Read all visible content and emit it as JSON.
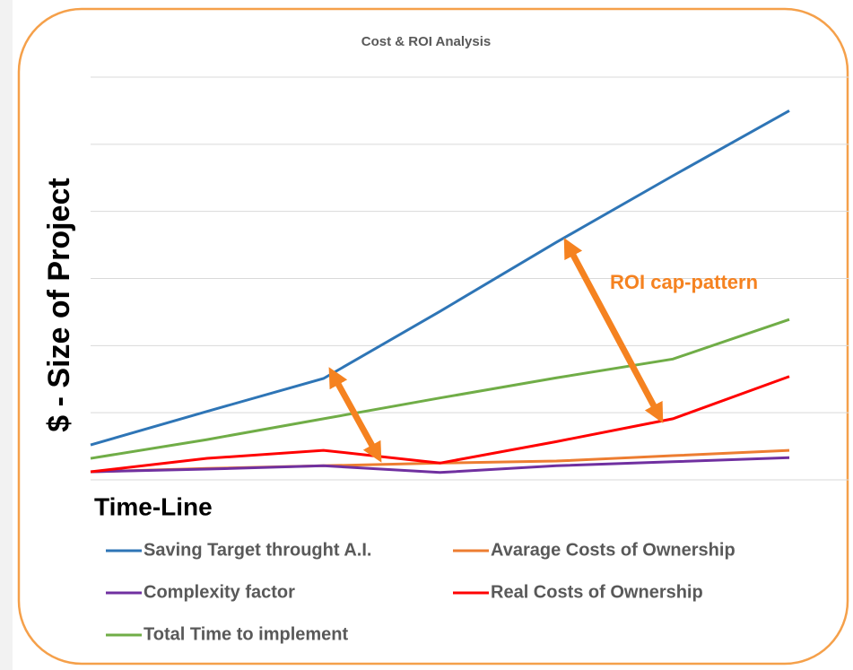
{
  "chart_data": {
    "type": "line",
    "title": "Cost & ROI Analysis",
    "x_label": "Time-Line",
    "y_label": "$ - Size of Project",
    "annotations": [
      "ROI cap-pattern"
    ],
    "categories": [
      null,
      null,
      null,
      null,
      null,
      null,
      null
    ],
    "series": [
      {
        "name": "Saving Target throught A.I.",
        "color": "#2e75b6",
        "values": [
          0.52,
          1.02,
          1.51,
          2.51,
          3.54,
          4.53,
          5.5
        ]
      },
      {
        "name": "Avarage Costs of Ownership",
        "color": "#ed7d31",
        "values": [
          0.12,
          0.17,
          0.21,
          0.25,
          0.28,
          0.36,
          0.44
        ]
      },
      {
        "name": "Complexity factor",
        "color": "#7030a0",
        "values": [
          0.12,
          0.16,
          0.21,
          0.11,
          0.21,
          0.27,
          0.33
        ]
      },
      {
        "name": "Real Costs of Ownership",
        "color": "#ff0000",
        "values": [
          0.12,
          0.32,
          0.44,
          0.25,
          0.57,
          0.91,
          1.54
        ]
      },
      {
        "name": "Total Time to implement",
        "color": "#70ad47",
        "values": [
          0.32,
          0.6,
          0.91,
          1.22,
          1.52,
          1.8,
          2.39
        ]
      }
    ],
    "ylim": [
      0,
      6
    ],
    "yticks": [
      0,
      1,
      2,
      3,
      4,
      5,
      6
    ],
    "grid": true
  }
}
